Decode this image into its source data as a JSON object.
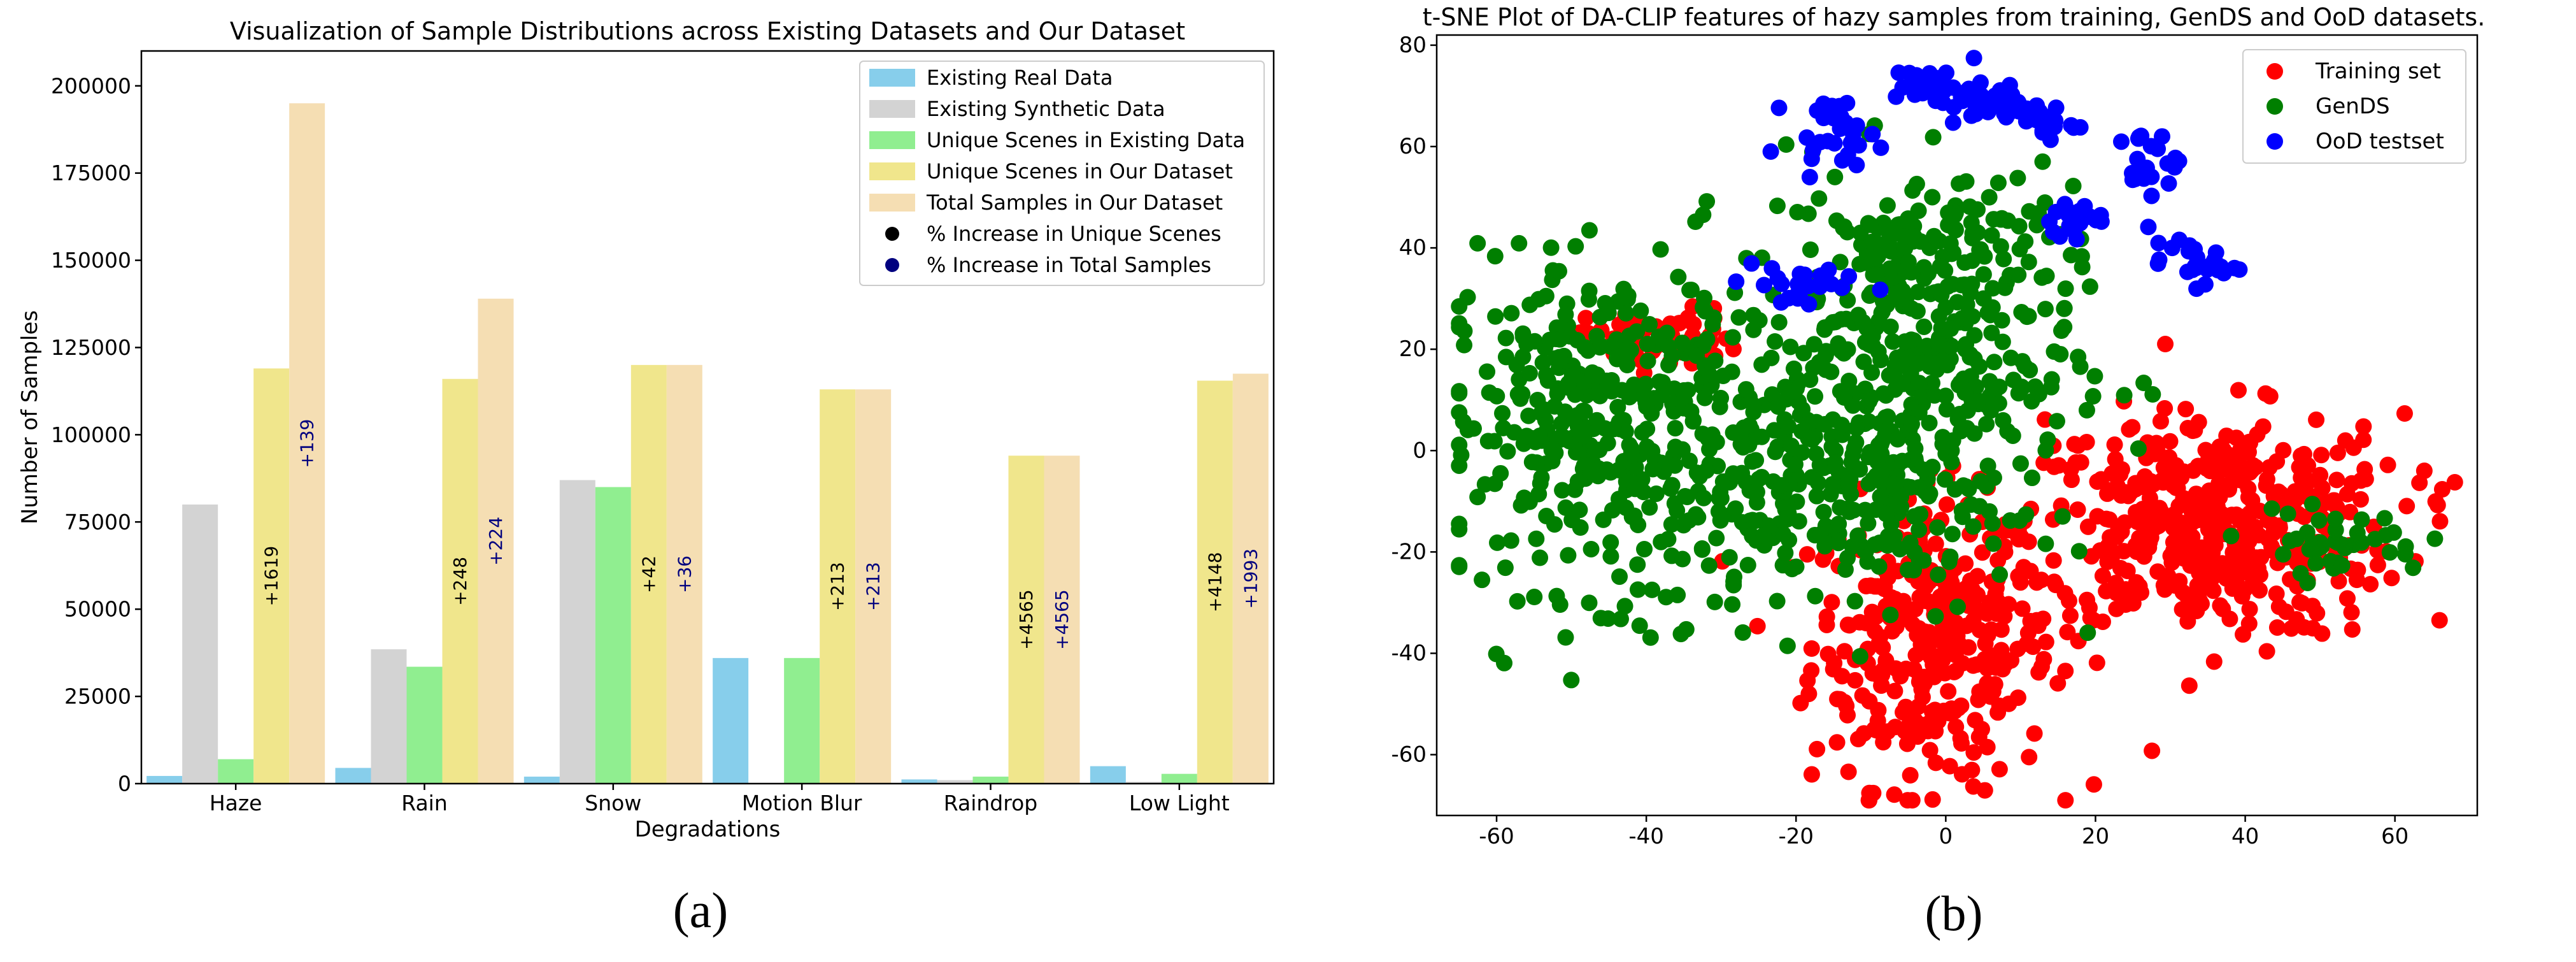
{
  "chart_data": [
    {
      "type": "bar",
      "title": "Visualization of Sample Distributions across Existing Datasets and Our Dataset",
      "xlabel": "Degradations",
      "ylabel": "Number of Samples",
      "ylim": [
        0,
        210000
      ],
      "yticks": [
        0,
        25000,
        50000,
        75000,
        100000,
        125000,
        150000,
        175000,
        200000
      ],
      "categories": [
        "Haze",
        "Rain",
        "Snow",
        "Motion Blur",
        "Raindrop",
        "Low Light"
      ],
      "legend_position": "top-right",
      "series": [
        {
          "name": "Existing Real Data",
          "color": "#87ceeb",
          "values": [
            2200,
            4500,
            2000,
            36000,
            1200,
            5000
          ]
        },
        {
          "name": "Existing Synthetic Data",
          "color": "#d3d3d3",
          "values": [
            80000,
            38500,
            87000,
            0,
            1000,
            500
          ]
        },
        {
          "name": "Unique Scenes in Existing Data",
          "color": "#90ee90",
          "values": [
            7000,
            33500,
            85000,
            36000,
            2000,
            2800
          ]
        },
        {
          "name": "Unique Scenes in Our Dataset",
          "color": "#f0e68c",
          "values": [
            119000,
            116000,
            120000,
            113000,
            94000,
            115500
          ]
        },
        {
          "name": "Total Samples in Our Dataset",
          "color": "#f5deb3",
          "values": [
            195000,
            139000,
            120000,
            113000,
            94000,
            117500
          ]
        }
      ],
      "markers": [
        {
          "name": "% Increase in Unique Scenes",
          "color": "#000000",
          "labels": [
            "+1619",
            "+248",
            "+42",
            "+213",
            "+4565",
            "+4148"
          ]
        },
        {
          "name": "% Increase in Total Samples",
          "color": "#00007f",
          "labels": [
            "+139",
            "+224",
            "+36",
            "+213",
            "+4565",
            "+1993"
          ]
        }
      ],
      "caption": "(a)"
    },
    {
      "type": "scatter",
      "title": "t-SNE Plot of DA-CLIP features of hazy samples from training, GenDS and OoD datasets.",
      "xlim": [
        -68,
        71
      ],
      "ylim": [
        -72,
        82
      ],
      "xticks": [
        -60,
        -40,
        -20,
        0,
        20,
        40,
        60
      ],
      "yticks": [
        -60,
        -40,
        -20,
        0,
        20,
        40,
        60,
        80
      ],
      "legend_position": "top-right",
      "series": [
        {
          "name": "Training set",
          "color": "#ff0000",
          "clusters": [
            [
              -2,
              -38,
              8,
              14,
              330
            ],
            [
              35,
              -15,
              13,
              11,
              480
            ],
            [
              -38,
              22,
              5,
              3,
              60
            ]
          ]
        },
        {
          "name": "GenDS",
          "color": "#007f00",
          "clusters": [
            [
              -45,
              5,
              11,
              16,
              380
            ],
            [
              -5,
              18,
              11,
              17,
              420
            ],
            [
              -15,
              -10,
              12,
              12,
              200
            ],
            [
              52,
              -18,
              6,
              3,
              40
            ],
            [
              -3,
              42,
              8,
              7,
              60
            ]
          ]
        },
        {
          "name": "OoD testset",
          "color": "#0000ff",
          "clusters": [
            [
              -15,
              63,
              3,
              3,
              30
            ],
            [
              -1,
              72,
              3,
              2,
              30
            ],
            [
              7,
              68,
              3,
              2,
              30
            ],
            [
              13,
              65,
              2,
              2,
              18
            ],
            [
              27,
              57,
              2,
              3,
              22
            ],
            [
              33,
              37,
              3,
              2,
              28
            ],
            [
              18,
              45,
              2,
              2,
              18
            ],
            [
              -20,
              33,
              4,
              3,
              26
            ]
          ]
        }
      ],
      "caption": "(b)"
    }
  ]
}
